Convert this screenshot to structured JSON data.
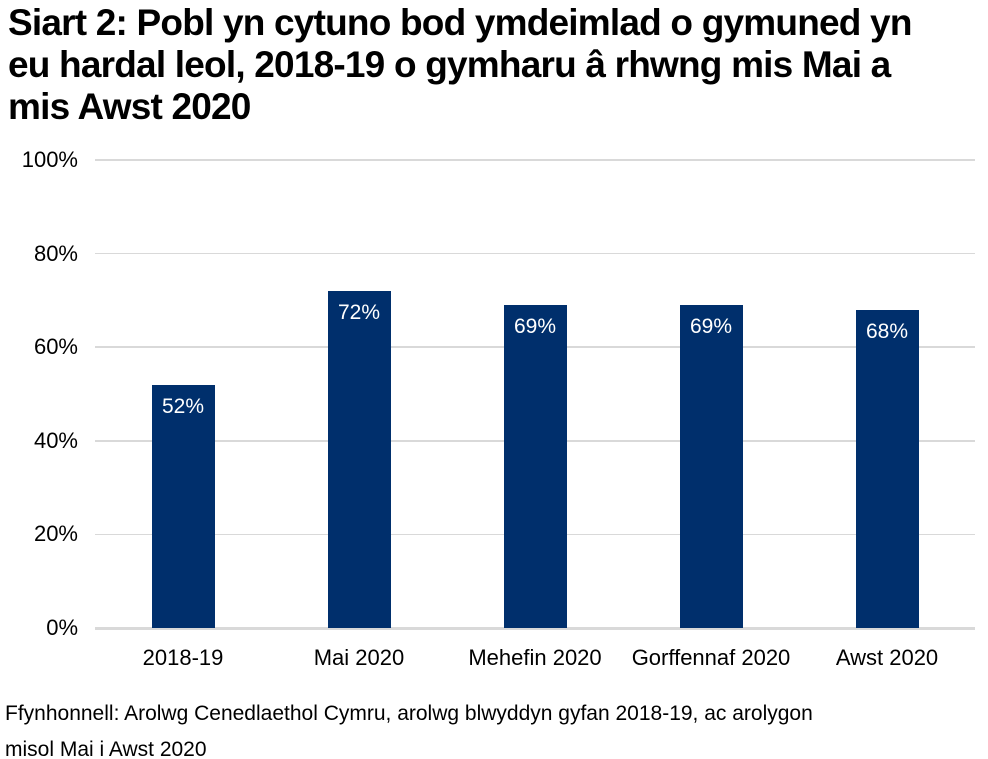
{
  "title": {
    "text": "Siart 2: Pobl yn cytuno bod ymdeimlad o gymuned yn eu hardal leol, 2018-19 o gymharu â rhwng mis Mai a mis Awst 2020",
    "lines": [
      "Siart 2: Pobl yn cytuno bod ymdeimlad o gymuned yn",
      "eu hardal leol, 2018-19 o gymharu â rhwng mis Mai a",
      "mis Awst 2020"
    ]
  },
  "source": {
    "text": "Ffynhonnell: Arolwg Cenedlaethol Cymru, arolwg blwyddyn gyfan 2018-19, ac arolygon misol Mai i Awst 2020",
    "lines": [
      "Ffynhonnell: Arolwg Cenedlaethol Cymru, arolwg blwyddyn gyfan 2018-19, ac arolygon",
      "misol Mai i Awst 2020"
    ]
  },
  "chart_data": {
    "type": "bar",
    "title": "Siart 2: Pobl yn cytuno bod ymdeimlad o gymuned yn eu hardal leol, 2018-19 o gymharu â rhwng mis Mai a mis Awst 2020",
    "categories": [
      "2018-19",
      "Mai 2020",
      "Mehefin 2020",
      "Gorffennaf 2020",
      "Awst 2020"
    ],
    "values": [
      52,
      72,
      69,
      69,
      68
    ],
    "data_labels": [
      "52%",
      "72%",
      "69%",
      "69%",
      "68%"
    ],
    "xlabel": "",
    "ylabel": "",
    "ylim": [
      0,
      100
    ],
    "yticks": [
      0,
      20,
      40,
      60,
      80,
      100
    ],
    "ytick_labels": [
      "0%",
      "20%",
      "40%",
      "60%",
      "80%",
      "100%"
    ],
    "grid": "horizontal",
    "legend": "none",
    "colors": {
      "bar": "#002F6C",
      "bar_label": "#FFFFFF",
      "gridline": "#D9D9D9",
      "axis_line": "#D9D9D9",
      "text": "#000000",
      "background": "#FFFFFF"
    }
  }
}
